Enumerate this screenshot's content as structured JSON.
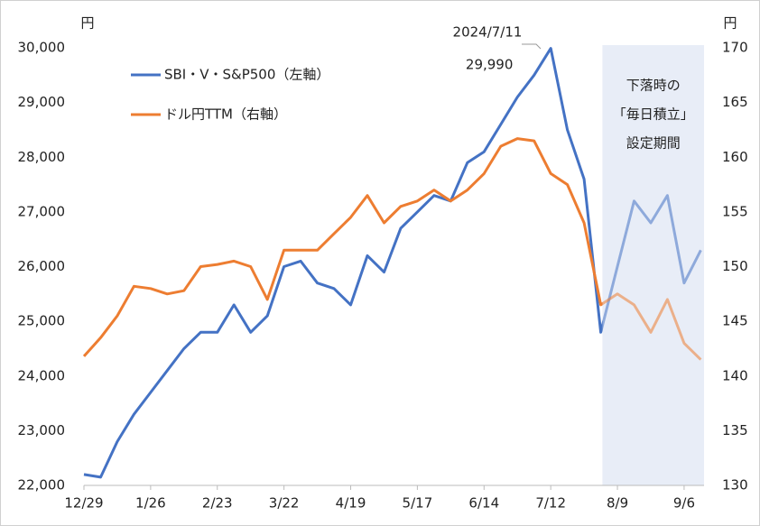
{
  "chart_data": {
    "type": "line",
    "categories": [
      "12/29",
      null,
      null,
      null,
      "1/26",
      null,
      null,
      null,
      "2/23",
      null,
      null,
      null,
      "3/22",
      null,
      null,
      null,
      "4/19",
      null,
      null,
      null,
      "5/17",
      null,
      null,
      null,
      "6/14",
      null,
      null,
      null,
      "7/12",
      null,
      null,
      null,
      "8/9",
      null,
      null,
      null,
      "9/6",
      null
    ],
    "series": [
      {
        "name": "SBI・V・S&P500（左軸）",
        "color": "#4472c4",
        "axis": "y",
        "values": [
          22200,
          22150,
          22800,
          23300,
          23700,
          24100,
          24500,
          24800,
          24800,
          25300,
          24800,
          25100,
          26000,
          26100,
          25700,
          25600,
          25300,
          26200,
          25900,
          26700,
          27000,
          27300,
          27200,
          27900,
          28100,
          28600,
          29100,
          29500,
          29990,
          28500,
          27600,
          24800,
          26000,
          27200,
          26800,
          27300,
          25700,
          26300
        ],
        "value_labels": [
          null,
          null,
          null,
          null,
          null,
          null,
          null,
          null,
          null,
          null,
          null,
          null,
          null,
          null,
          null,
          null,
          null,
          null,
          null,
          null,
          null,
          null,
          null,
          null,
          null,
          null,
          null,
          null,
          "29,990",
          null,
          null,
          null,
          null,
          null,
          null,
          null,
          null,
          null
        ]
      },
      {
        "name": "ドル円TTM（右軸）",
        "color": "#ed7d31",
        "axis": "y2",
        "values": [
          141.8,
          143.5,
          145.5,
          148.2,
          148.0,
          147.5,
          147.8,
          150.0,
          150.2,
          150.5,
          150.0,
          147.0,
          151.5,
          151.5,
          151.5,
          153.0,
          154.5,
          156.5,
          154.0,
          155.5,
          156.0,
          157.0,
          156.0,
          157.0,
          158.5,
          161.0,
          161.7,
          161.5,
          158.5,
          157.5,
          154.0,
          146.5,
          147.5,
          146.5,
          144.0,
          147.0,
          143.0,
          141.5
        ]
      }
    ],
    "y_unit": "円",
    "y2_unit": "円",
    "ylim": [
      22000,
      30000
    ],
    "yticks": [
      {
        "value": 22000,
        "label": "22,000"
      },
      {
        "value": 23000,
        "label": "23,000"
      },
      {
        "value": 24000,
        "label": "24,000"
      },
      {
        "value": 25000,
        "label": "25,000"
      },
      {
        "value": 26000,
        "label": "26,000"
      },
      {
        "value": 27000,
        "label": "27,000"
      },
      {
        "value": 28000,
        "label": "28,000"
      },
      {
        "value": 29000,
        "label": "29,000"
      },
      {
        "value": 30000,
        "label": "30,000"
      }
    ],
    "y2lim": [
      130,
      170
    ],
    "y2ticks": [
      130,
      135,
      140,
      145,
      150,
      155,
      160,
      165,
      170
    ],
    "grid": false,
    "peak_date_label": "2024/7/11",
    "shaded_note": [
      "下落時の",
      "「毎日積立」",
      "設定期間"
    ]
  }
}
